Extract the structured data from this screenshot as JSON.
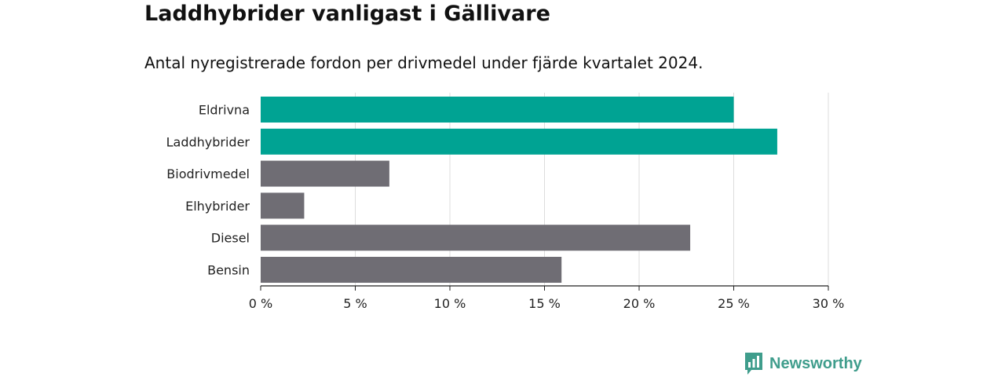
{
  "title": "Laddhybrider vanligast i Gällivare",
  "subtitle": "Antal nyregistrerade fordon per drivmedel under fjärde kvartalet 2024.",
  "brand": {
    "name": "Newsworthy",
    "icon": "newsworthy-logo-icon"
  },
  "colors": {
    "highlight": "#00a393",
    "default": "#6f6d74",
    "grid": "#dddddd",
    "axis": "#222222",
    "brand": "#3f9d8c"
  },
  "chart_data": {
    "type": "bar",
    "orientation": "horizontal",
    "categories": [
      "Eldrivna",
      "Laddhybrider",
      "Biodrivmedel",
      "Elhybrider",
      "Diesel",
      "Bensin"
    ],
    "values": [
      25.0,
      27.3,
      6.8,
      2.3,
      22.7,
      15.9
    ],
    "highlighted": [
      "Eldrivna",
      "Laddhybrider"
    ],
    "xlim": [
      0,
      30
    ],
    "xticks": [
      0,
      5,
      10,
      15,
      20,
      25,
      30
    ],
    "xtick_labels": [
      "0 %",
      "5 %",
      "10 %",
      "15 %",
      "20 %",
      "25 %",
      "30 %"
    ],
    "xlabel": "",
    "ylabel": "",
    "grid": "vertical"
  }
}
